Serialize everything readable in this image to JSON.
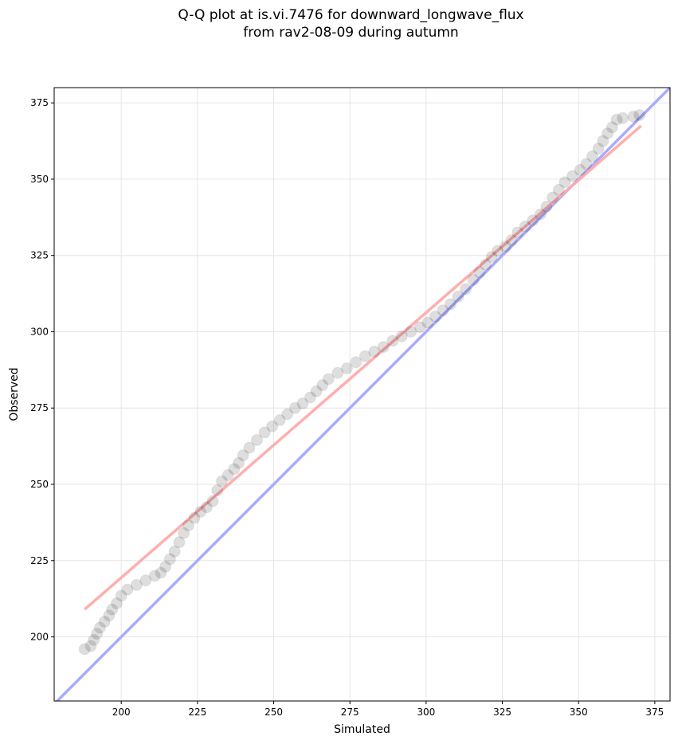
{
  "title_line1": "Q-Q plot at is.vi.7476 for downward_longwave_flux",
  "title_line2": "from rav2-08-09 during autumn",
  "chart_data": {
    "type": "scatter",
    "xlabel": "Simulated",
    "ylabel": "Observed",
    "xlim": [
      178,
      380
    ],
    "ylim": [
      179,
      380
    ],
    "x_ticks": [
      200,
      225,
      250,
      275,
      300,
      325,
      350,
      375
    ],
    "y_ticks": [
      200,
      225,
      250,
      275,
      300,
      325,
      350,
      375
    ],
    "grid": true,
    "reference_lines": [
      {
        "kind": "identity (1:1)",
        "color": "#aaaaff",
        "x": [
          178,
          380
        ],
        "y": [
          178,
          380
        ]
      },
      {
        "kind": "fit",
        "color": "#ffaaaa",
        "x": [
          188,
          370.5
        ],
        "y": [
          209,
          367.5
        ]
      }
    ],
    "marker_color": "#000000",
    "quantiles": [
      [
        188,
        196
      ],
      [
        190,
        197
      ],
      [
        191,
        199
      ],
      [
        192,
        201
      ],
      [
        193,
        203
      ],
      [
        194.5,
        205
      ],
      [
        196,
        207
      ],
      [
        197,
        209
      ],
      [
        198.5,
        211
      ],
      [
        200,
        213.5
      ],
      [
        202,
        215.5
      ],
      [
        205,
        217
      ],
      [
        208,
        218.5
      ],
      [
        211,
        220
      ],
      [
        213,
        221
      ],
      [
        214.5,
        223
      ],
      [
        216,
        225.5
      ],
      [
        217.5,
        228
      ],
      [
        219,
        231
      ],
      [
        220.5,
        234
      ],
      [
        222,
        236.5
      ],
      [
        224,
        239
      ],
      [
        226,
        241
      ],
      [
        228,
        242.5
      ],
      [
        230,
        244.5
      ],
      [
        231.5,
        248
      ],
      [
        233,
        251
      ],
      [
        235,
        253
      ],
      [
        237,
        255
      ],
      [
        238.5,
        257
      ],
      [
        240,
        259.5
      ],
      [
        242,
        262
      ],
      [
        244.5,
        264.5
      ],
      [
        247,
        267
      ],
      [
        249.5,
        269
      ],
      [
        252,
        271
      ],
      [
        254.5,
        273
      ],
      [
        257,
        275
      ],
      [
        259.5,
        276.5
      ],
      [
        262,
        278.5
      ],
      [
        264,
        280.5
      ],
      [
        266,
        282.5
      ],
      [
        268,
        284.5
      ],
      [
        271,
        286.5
      ],
      [
        274,
        288
      ],
      [
        277,
        290
      ],
      [
        280,
        292
      ],
      [
        283,
        293.5
      ],
      [
        286,
        295
      ],
      [
        289,
        297
      ],
      [
        292,
        298.5
      ],
      [
        295,
        300
      ],
      [
        298,
        301.5
      ],
      [
        300.5,
        303
      ],
      [
        303,
        305
      ],
      [
        305.5,
        307
      ],
      [
        308,
        309
      ],
      [
        310.5,
        311.5
      ],
      [
        313,
        314
      ],
      [
        315.5,
        317
      ],
      [
        317.5,
        319.5
      ],
      [
        319.5,
        322
      ],
      [
        321.5,
        324.5
      ],
      [
        323.5,
        326.5
      ],
      [
        326,
        328
      ],
      [
        328,
        330
      ],
      [
        330,
        332.5
      ],
      [
        332.5,
        334.5
      ],
      [
        335,
        336.5
      ],
      [
        337.5,
        338.5
      ],
      [
        339.5,
        341
      ],
      [
        341.5,
        344
      ],
      [
        343.5,
        346.5
      ],
      [
        345.5,
        349
      ],
      [
        348,
        351
      ],
      [
        350.5,
        353
      ],
      [
        352.5,
        355
      ],
      [
        354.5,
        357.5
      ],
      [
        356.5,
        360
      ],
      [
        358,
        362.5
      ],
      [
        359.5,
        365
      ],
      [
        361,
        367
      ],
      [
        362.5,
        369.5
      ],
      [
        364.5,
        370
      ],
      [
        368,
        370.5
      ],
      [
        370,
        371
      ]
    ]
  }
}
